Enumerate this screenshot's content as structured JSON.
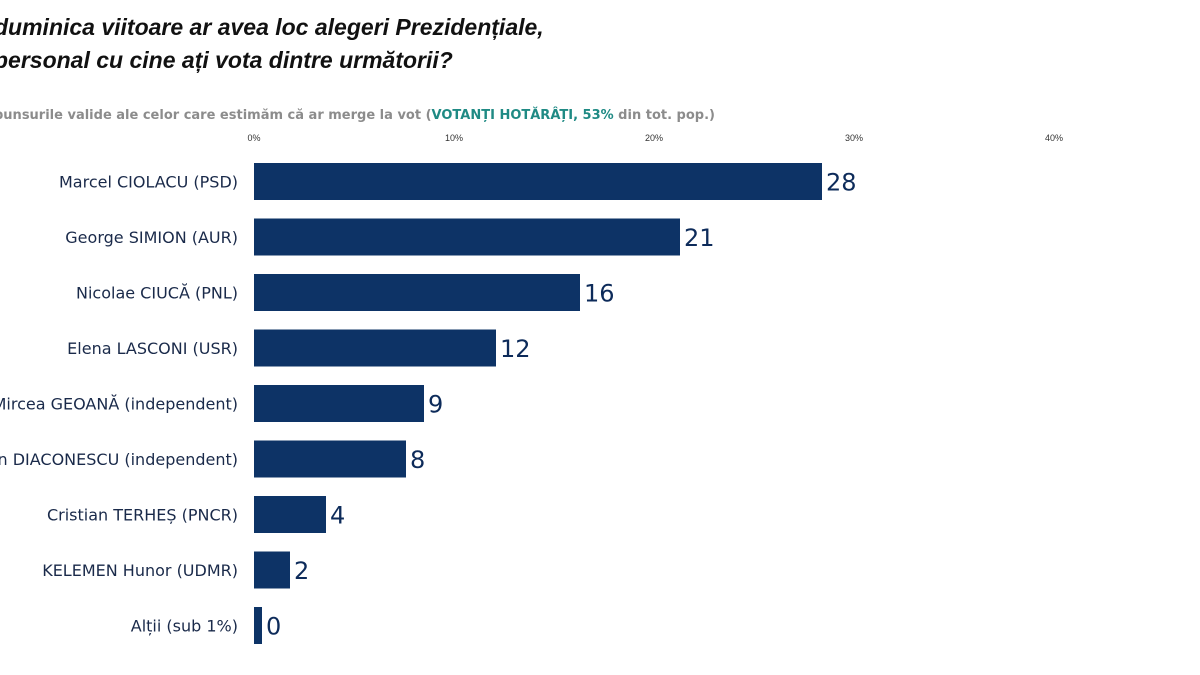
{
  "title": {
    "line1": "duminica viitoare ar avea loc alegeri Prezidențiale,",
    "line2": "personal cu cine ați vota dintre următorii?"
  },
  "subtitle": {
    "prefix": "punsurile valide ale celor care estimăm că ar merge la vot (",
    "highlight": "VOTANȚI HOTĂRÂȚI, 53%",
    "suffix": " din tot. pop.)"
  },
  "colors": {
    "bar": "#0d3366",
    "value_label": "#0d2b5a",
    "category_label": "#1a2a4a",
    "highlight": "#1f8a84",
    "subtitle": "#8c8c8c"
  },
  "chart_data": {
    "type": "bar",
    "orientation": "horizontal",
    "categories": [
      "Marcel CIOLACU (PSD)",
      "George SIMION (AUR)",
      "Nicolae CIUCĂ (PNL)",
      "Elena LASCONI (USR)",
      "Mircea GEOANĂ (independent)",
      "Ludovic ORBAN DIACONESCU (independent)",
      "Cristian TERHEȘ (PNCR)",
      "KELEMEN Hunor (UDMR)",
      "Alții (sub 1%)"
    ],
    "category_display": [
      "Marcel CIOLACU (PSD)",
      "George SIMION (AUR)",
      "Nicolae CIUCĂ (PNL)",
      "Elena LASCONI (USR)",
      "Mircea GEOANĂ (independent)",
      "n DIACONESCU (independent)",
      "Cristian TERHEȘ (PNCR)",
      "KELEMEN Hunor (UDMR)",
      "Alții (sub 1%)"
    ],
    "values": [
      28.4,
      21.3,
      16.3,
      12.1,
      8.5,
      7.6,
      3.6,
      1.8,
      0.4
    ],
    "value_labels": [
      "28",
      "21",
      "16",
      "12",
      "9",
      "8",
      "4",
      "2",
      "0"
    ],
    "xlim": [
      0,
      40
    ],
    "ticks": [
      0,
      10,
      20,
      30,
      40
    ],
    "tick_labels": [
      "0%",
      "10%",
      "20%",
      "30%",
      "40%"
    ],
    "tick_position": "top",
    "grid": false,
    "legend": "none",
    "title": "duminica viitoare ar avea loc alegeri Prezidențiale, personal cu cine ați vota dintre următorii?",
    "xlabel": "",
    "ylabel": ""
  }
}
